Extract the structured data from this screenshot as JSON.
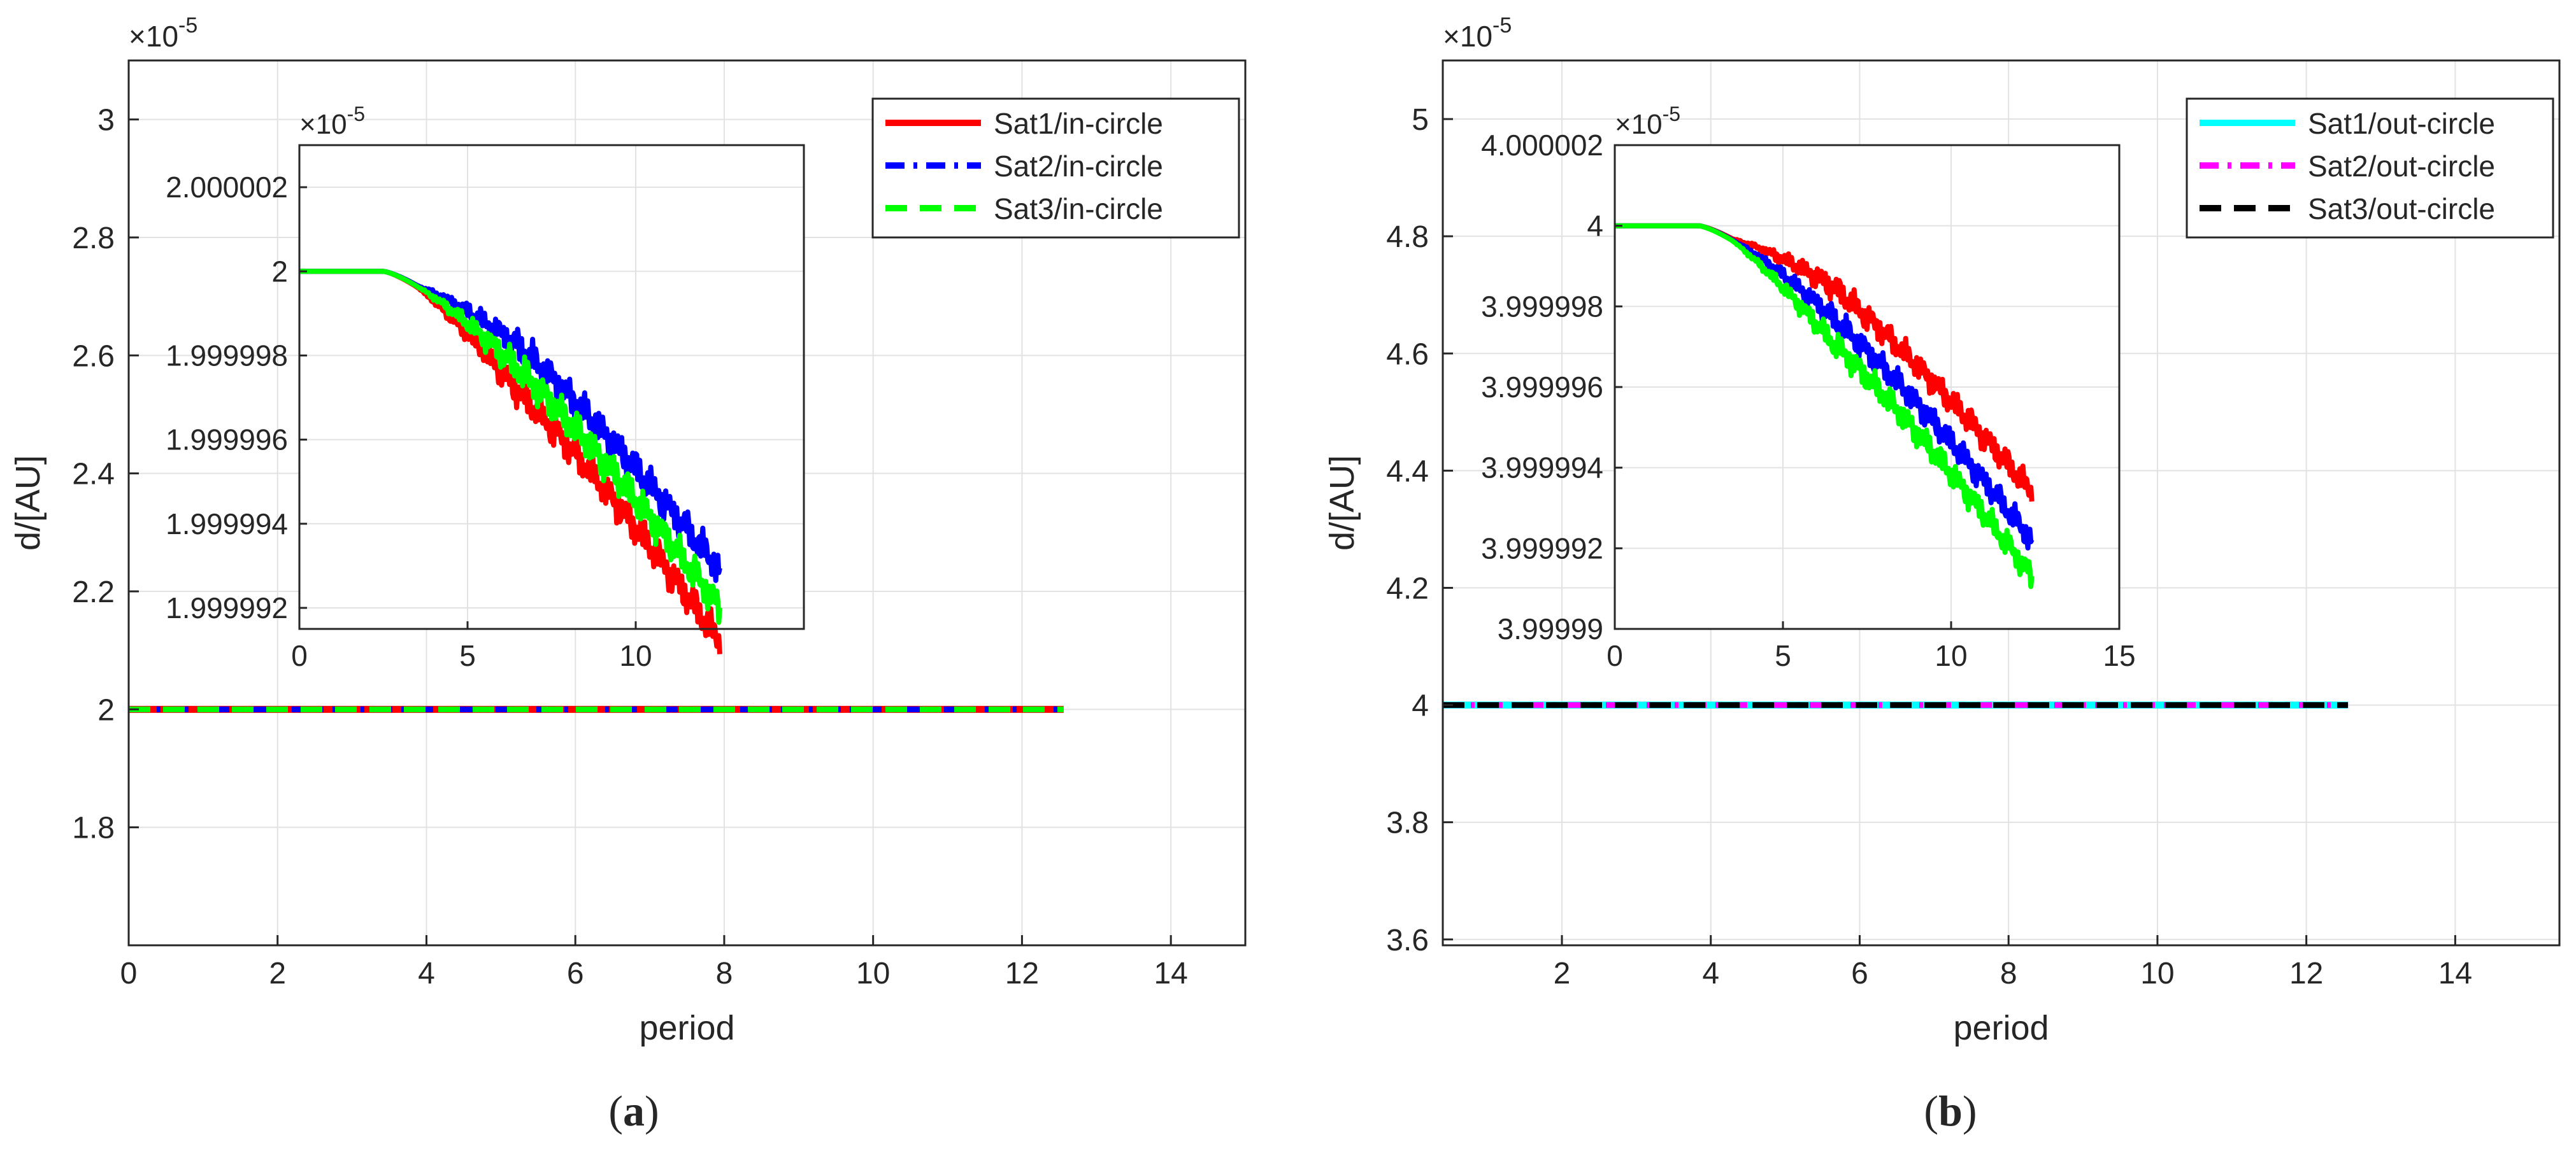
{
  "chart_data": [
    {
      "id": "a",
      "type": "line",
      "panel_label": "a",
      "xlabel": "period",
      "ylabel": "d/[AU]",
      "exponent_label": "×10",
      "exponent_power": "-5",
      "xlim": [
        0,
        15
      ],
      "ylim": [
        1.6,
        3.1
      ],
      "xticks": [
        0,
        2,
        4,
        6,
        8,
        10,
        12,
        14
      ],
      "yticks": [
        1.8,
        2,
        2.2,
        2.4,
        2.6,
        2.8,
        3
      ],
      "ytick_labels": [
        "1.8",
        "2",
        "2.2",
        "2.4",
        "2.6",
        "2.8",
        "3"
      ],
      "grid": true,
      "legend_position": "top-right",
      "series": [
        {
          "name": "Sat1/in-circle",
          "color": "#ff0000",
          "dash": "solid",
          "x": [
            0,
            12.56
          ],
          "y": [
            2.0,
            2.0
          ]
        },
        {
          "name": "Sat2/in-circle",
          "color": "#0000ff",
          "dash": "dashdot",
          "x": [
            0,
            12.56
          ],
          "y": [
            2.0,
            2.0
          ]
        },
        {
          "name": "Sat3/in-circle",
          "color": "#00ff00",
          "dash": "dashed",
          "x": [
            0,
            12.56
          ],
          "y": [
            2.0,
            2.0
          ]
        }
      ],
      "inset": {
        "xlim": [
          0,
          15
        ],
        "ylim": [
          1.9999915,
          2.000003
        ],
        "xticks": [
          0,
          5,
          10
        ],
        "yticks": [
          1.999992,
          1.999994,
          1.999996,
          1.999998,
          2.0,
          2.000002
        ],
        "ytick_labels": [
          "1.999992",
          "1.999994",
          "1.999996",
          "1.999998",
          "2",
          "2.000002"
        ],
        "exponent_label": "×10",
        "exponent_power": "-5",
        "grid": true,
        "series": [
          {
            "name": "Sat1/in-circle",
            "color": "#ff0000",
            "end_x": 12.5,
            "end_y": 1.9999916,
            "phase": 0.0,
            "osc_amp": 5e-07,
            "offset": -4e-07
          },
          {
            "name": "Sat2/in-circle",
            "color": "#0000ff",
            "end_x": 12.5,
            "end_y": 1.9999925,
            "phase": 1.4,
            "osc_amp": 5e-07,
            "offset": 4e-07
          },
          {
            "name": "Sat3/in-circle",
            "color": "#00ff00",
            "end_x": 12.5,
            "end_y": 1.999992,
            "phase": 2.6,
            "osc_amp": 5e-07,
            "offset": 0.0
          }
        ]
      }
    },
    {
      "id": "b",
      "type": "line",
      "panel_label": "b",
      "xlabel": "period",
      "ylabel": "d/[AU]",
      "exponent_label": "×10",
      "exponent_power": "-5",
      "xlim": [
        0.4,
        15.4
      ],
      "ylim": [
        3.59,
        5.1
      ],
      "xticks": [
        2,
        4,
        6,
        8,
        10,
        12,
        14
      ],
      "yticks": [
        3.6,
        3.8,
        4,
        4.2,
        4.4,
        4.6,
        4.8,
        5
      ],
      "ytick_labels": [
        "3.6",
        "3.8",
        "4",
        "4.2",
        "4.4",
        "4.6",
        "4.8",
        "5"
      ],
      "grid": true,
      "legend_position": "top-right",
      "series": [
        {
          "name": "Sat1/out-circle",
          "color": "#00ffff",
          "dash": "solid",
          "x": [
            0.4,
            12.56
          ],
          "y": [
            4.0,
            4.0
          ]
        },
        {
          "name": "Sat2/out-circle",
          "color": "#ff00ff",
          "dash": "dashdot",
          "x": [
            0.4,
            12.56
          ],
          "y": [
            4.0,
            4.0
          ]
        },
        {
          "name": "Sat3/out-circle",
          "color": "#000000",
          "dash": "dashed",
          "x": [
            0.4,
            12.56
          ],
          "y": [
            4.0,
            4.0
          ]
        }
      ],
      "inset": {
        "xlim": [
          0,
          15
        ],
        "ylim": [
          3.99999,
          4.000002
        ],
        "xticks": [
          0,
          5,
          10,
          15
        ],
        "yticks": [
          3.99999,
          3.999992,
          3.999994,
          3.999996,
          3.999998,
          4.0,
          4.000002
        ],
        "ytick_labels": [
          "3.99999",
          "3.999992",
          "3.999994",
          "3.999996",
          "3.999998",
          "4",
          "4.000002"
        ],
        "exponent_label": "×10",
        "exponent_power": "-5",
        "grid": true,
        "series": [
          {
            "name": "Sat1",
            "color": "#ff0000",
            "end_x": 12.4,
            "end_y": 3.9999928,
            "phase": 0.0,
            "osc_amp": 4e-07,
            "offset": 6e-07
          },
          {
            "name": "Sat2",
            "color": "#0000ff",
            "end_x": 12.4,
            "end_y": 3.9999922,
            "phase": 1.3,
            "osc_amp": 4e-07,
            "offset": 0.0
          },
          {
            "name": "Sat3",
            "color": "#00ff00",
            "end_x": 12.4,
            "end_y": 3.9999918,
            "phase": 2.5,
            "osc_amp": 4e-07,
            "offset": -5e-07
          }
        ]
      }
    }
  ]
}
